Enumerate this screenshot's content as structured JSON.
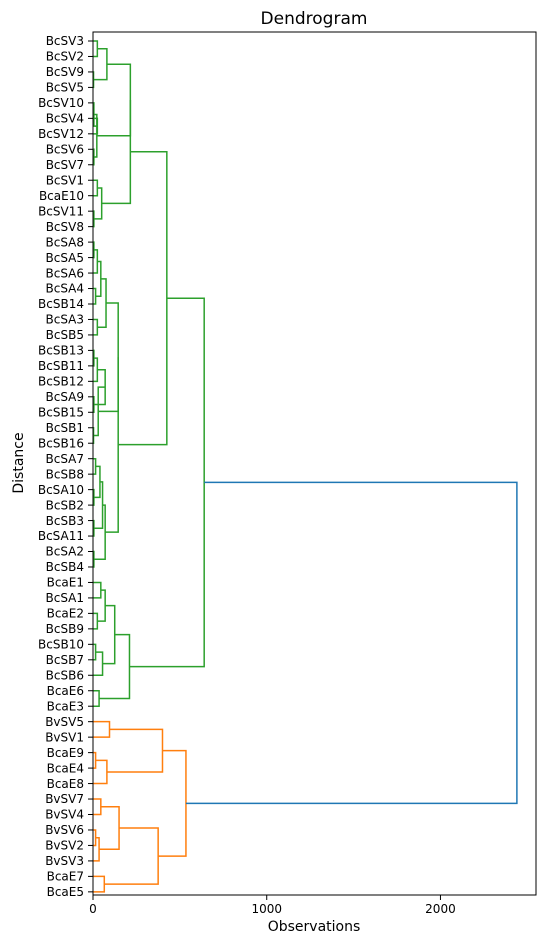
{
  "chart_data": {
    "type": "dendrogram",
    "title": "Dendrogram",
    "xlabel": "Observations",
    "ylabel": "Distance",
    "orientation": "left",
    "xlim": [
      0,
      2550
    ],
    "xticks": [
      0,
      1000,
      2000
    ],
    "grid": false,
    "colors": {
      "green": "#2ca02c",
      "orange": "#ff7f0e",
      "blue": "#1f77b4"
    },
    "leaves": [
      "BcSV3",
      "BcSV2",
      "BcSV9",
      "BcSV5",
      "BcSV10",
      "BcSV4",
      "BcSV12",
      "BcSV6",
      "BcSV7",
      "BcSV1",
      "BcaE10",
      "BcSV11",
      "BcSV8",
      "BcSA8",
      "BcSA5",
      "BcSA6",
      "BcSA4",
      "BcSB14",
      "BcSA3",
      "BcSB5",
      "BcSB13",
      "BcSB11",
      "BcSB12",
      "BcSA9",
      "BcSB15",
      "BcSB1",
      "BcSB16",
      "BcSA7",
      "BcSB8",
      "BcSA10",
      "BcSB2",
      "BcSB3",
      "BcSA11",
      "BcSA2",
      "BcSB4",
      "BcaE1",
      "BcSA1",
      "BcaE2",
      "BcSB9",
      "BcSB10",
      "BcSB7",
      "BcSB6",
      "BcaE6",
      "BcaE3",
      "BvSV5",
      "BvSV1",
      "BcaE9",
      "BcaE4",
      "BcaE8",
      "BvSV7",
      "BvSV4",
      "BvSV6",
      "BvSV2",
      "BvSV3",
      "BcaE7",
      "BcaE5"
    ],
    "merges": [
      {
        "id": "n1",
        "left": "BcSV3",
        "right": "BcSV2",
        "distance": 25,
        "color": "green"
      },
      {
        "id": "n2",
        "left": "BcSV9",
        "right": "BcSV5",
        "distance": 3,
        "color": "green"
      },
      {
        "id": "n3",
        "left": "n1",
        "right": "n2",
        "distance": 80,
        "color": "green"
      },
      {
        "id": "n4",
        "left": "BcSV4",
        "right": "BcSV12",
        "distance": 25,
        "color": "green"
      },
      {
        "id": "n5",
        "left": "BcSV10",
        "right": "n4",
        "distance": 5,
        "color": "green"
      },
      {
        "id": "n6",
        "left": "BcSV6",
        "right": "BcSV7",
        "distance": 5,
        "color": "green"
      },
      {
        "id": "n7",
        "left": "n5",
        "right": "n6",
        "distance": 22,
        "color": "green"
      },
      {
        "id": "n8",
        "left": "n7",
        "right": "n3",
        "distance": 215,
        "color": "green"
      },
      {
        "id": "n9",
        "left": "BcSV1",
        "right": "BcaE10",
        "distance": 25,
        "color": "green"
      },
      {
        "id": "n10",
        "left": "BcSV11",
        "right": "BcSV8",
        "distance": 5,
        "color": "green"
      },
      {
        "id": "n11",
        "left": "n9",
        "right": "n10",
        "distance": 50,
        "color": "green"
      },
      {
        "id": "n12",
        "left": "n8",
        "right": "n11",
        "distance": 215,
        "color": "green"
      },
      {
        "id": "n13",
        "left": "BcSA8",
        "right": "BcSA5",
        "distance": 5,
        "color": "green"
      },
      {
        "id": "n14",
        "left": "n13",
        "right": "BcSA6",
        "distance": 25,
        "color": "green"
      },
      {
        "id": "n15",
        "left": "BcSA4",
        "right": "BcSB14",
        "distance": 15,
        "color": "green"
      },
      {
        "id": "n16",
        "left": "n14",
        "right": "n15",
        "distance": 45,
        "color": "green"
      },
      {
        "id": "n17",
        "left": "BcSA3",
        "right": "BcSB5",
        "distance": 25,
        "color": "green"
      },
      {
        "id": "n18",
        "left": "n16",
        "right": "n17",
        "distance": 75,
        "color": "green"
      },
      {
        "id": "n19",
        "left": "BcSB13",
        "right": "BcSB11",
        "distance": 5,
        "color": "green"
      },
      {
        "id": "n20",
        "left": "n19",
        "right": "BcSB12",
        "distance": 25,
        "color": "green"
      },
      {
        "id": "n21",
        "left": "BcSA9",
        "right": "BcSB15",
        "distance": 5,
        "color": "green"
      },
      {
        "id": "n22",
        "left": "n20",
        "right": "n21",
        "distance": 70,
        "color": "green"
      },
      {
        "id": "n23",
        "left": "BcSB1",
        "right": "BcSB16",
        "distance": 3,
        "color": "green"
      },
      {
        "id": "n24",
        "left": "n23",
        "right": "n22",
        "distance": 30,
        "color": "green"
      },
      {
        "id": "n25",
        "left": "n18",
        "right": "n24",
        "distance": 145,
        "color": "green"
      },
      {
        "id": "n26",
        "left": "BcSA7",
        "right": "BcSB8",
        "distance": 15,
        "color": "green"
      },
      {
        "id": "n27",
        "left": "BcSA10",
        "right": "BcSB2",
        "distance": 5,
        "color": "green"
      },
      {
        "id": "n28",
        "left": "n26",
        "right": "n27",
        "distance": 40,
        "color": "green"
      },
      {
        "id": "n29",
        "left": "BcSB3",
        "right": "BcSA11",
        "distance": 5,
        "color": "green"
      },
      {
        "id": "n30",
        "left": "n28",
        "right": "n29",
        "distance": 55,
        "color": "green"
      },
      {
        "id": "n31",
        "left": "BcSA2",
        "right": "BcSB4",
        "distance": 5,
        "color": "green"
      },
      {
        "id": "n32",
        "left": "n30",
        "right": "n31",
        "distance": 70,
        "color": "green"
      },
      {
        "id": "n33",
        "left": "n32",
        "right": "n25",
        "distance": 145,
        "color": "green"
      },
      {
        "id": "n34",
        "left": "n12",
        "right": "n33",
        "distance": 425,
        "color": "green"
      },
      {
        "id": "n35",
        "left": "BcaE1",
        "right": "BcSA1",
        "distance": 45,
        "color": "green"
      },
      {
        "id": "n36",
        "left": "BcaE2",
        "right": "BcSB9",
        "distance": 25,
        "color": "green"
      },
      {
        "id": "n37",
        "left": "n35",
        "right": "n36",
        "distance": 70,
        "color": "green"
      },
      {
        "id": "n38",
        "left": "BcSB10",
        "right": "BcSB7",
        "distance": 15,
        "color": "green"
      },
      {
        "id": "n39",
        "left": "n38",
        "right": "BcSB6",
        "distance": 55,
        "color": "green"
      },
      {
        "id": "n40",
        "left": "n37",
        "right": "n39",
        "distance": 125,
        "color": "green"
      },
      {
        "id": "n41",
        "left": "BcaE6",
        "right": "BcaE3",
        "distance": 35,
        "color": "green"
      },
      {
        "id": "n42",
        "left": "n40",
        "right": "n41",
        "distance": 210,
        "color": "green"
      },
      {
        "id": "n43",
        "left": "n34",
        "right": "n42",
        "distance": 640,
        "color": "green"
      },
      {
        "id": "n44",
        "left": "BvSV5",
        "right": "BvSV1",
        "distance": 95,
        "color": "orange"
      },
      {
        "id": "n45",
        "left": "BcaE9",
        "right": "BcaE4",
        "distance": 15,
        "color": "orange"
      },
      {
        "id": "n46",
        "left": "n45",
        "right": "BcaE8",
        "distance": 80,
        "color": "orange"
      },
      {
        "id": "n47",
        "left": "n44",
        "right": "n46",
        "distance": 400,
        "color": "orange"
      },
      {
        "id": "n48",
        "left": "BvSV7",
        "right": "BvSV4",
        "distance": 45,
        "color": "orange"
      },
      {
        "id": "n49",
        "left": "BvSV6",
        "right": "BvSV2",
        "distance": 15,
        "color": "orange"
      },
      {
        "id": "n50",
        "left": "n49",
        "right": "BvSV3",
        "distance": 35,
        "color": "orange"
      },
      {
        "id": "n51",
        "left": "n48",
        "right": "n50",
        "distance": 150,
        "color": "orange"
      },
      {
        "id": "n52",
        "left": "BcaE7",
        "right": "BcaE5",
        "distance": 65,
        "color": "orange"
      },
      {
        "id": "n53",
        "left": "n51",
        "right": "n52",
        "distance": 375,
        "color": "orange"
      },
      {
        "id": "n54",
        "left": "n47",
        "right": "n53",
        "distance": 535,
        "color": "orange"
      },
      {
        "id": "n55",
        "left": "n43",
        "right": "n54",
        "distance": 2440,
        "color": "blue"
      }
    ]
  }
}
